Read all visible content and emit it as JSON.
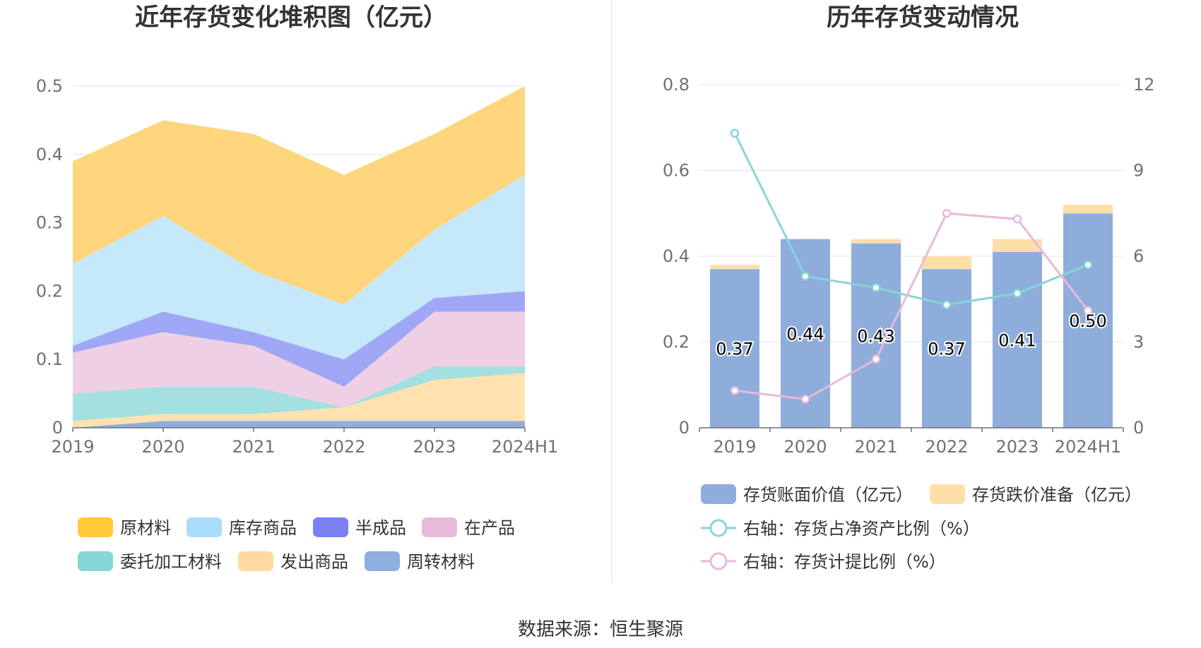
{
  "source": "数据来源：恒生聚源",
  "chart_data": [
    {
      "type": "area",
      "stacked": true,
      "title": "近年存货变化堆积图（亿元）",
      "categories": [
        "2019",
        "2020",
        "2021",
        "2022",
        "2023",
        "2024H1"
      ],
      "y_ticks": [
        "0",
        "0.1",
        "0.2",
        "0.3",
        "0.4",
        "0.5"
      ],
      "ylim": [
        0,
        0.5
      ],
      "grid": true,
      "legend_position": "bottom",
      "series": [
        {
          "name": "周转材料",
          "color": "#8eaee0",
          "values": [
            0.0,
            0.01,
            0.01,
            0.01,
            0.01,
            0.01
          ]
        },
        {
          "name": "发出商品",
          "color": "#ffe2b0",
          "values": [
            0.01,
            0.01,
            0.01,
            0.02,
            0.06,
            0.07
          ]
        },
        {
          "name": "委托加工材料",
          "color": "#a3e0df",
          "values": [
            0.04,
            0.04,
            0.04,
            0.0,
            0.02,
            0.01
          ]
        },
        {
          "name": "在产品",
          "color": "#efcfe5",
          "values": [
            0.06,
            0.08,
            0.06,
            0.03,
            0.08,
            0.08
          ]
        },
        {
          "name": "半成品",
          "color": "#a0a7f6",
          "values": [
            0.01,
            0.03,
            0.02,
            0.04,
            0.02,
            0.03
          ]
        },
        {
          "name": "库存商品",
          "color": "#c5e9fb",
          "values": [
            0.12,
            0.14,
            0.09,
            0.08,
            0.1,
            0.17
          ]
        },
        {
          "name": "原材料",
          "color": "#ffd67e",
          "values": [
            0.15,
            0.14,
            0.2,
            0.19,
            0.14,
            0.13
          ]
        }
      ],
      "legend": [
        {
          "name": "原材料",
          "color": "#ffc93a"
        },
        {
          "name": "库存商品",
          "color": "#a9def9"
        },
        {
          "name": "半成品",
          "color": "#7b80f2"
        },
        {
          "name": "在产品",
          "color": "#e9b9da"
        },
        {
          "name": "委托加工材料",
          "color": "#86d6d6"
        },
        {
          "name": "发出商品",
          "color": "#ffd9a0"
        },
        {
          "name": "周转材料",
          "color": "#8eaee0"
        }
      ]
    },
    {
      "type": "bar+line",
      "title": "历年存货变动情况",
      "categories": [
        "2019",
        "2020",
        "2021",
        "2022",
        "2023",
        "2024H1"
      ],
      "y_left_ticks": [
        "0",
        "0.2",
        "0.4",
        "0.6",
        "0.8"
      ],
      "y_left_lim": [
        0,
        0.8
      ],
      "y_right_ticks": [
        "0",
        "3",
        "6",
        "9",
        "12"
      ],
      "y_right_lim": [
        0,
        12
      ],
      "grid": true,
      "legend_position": "bottom",
      "bars": [
        {
          "name": "存货账面价值（亿元）",
          "color": "#8eaddb",
          "values": [
            0.37,
            0.44,
            0.43,
            0.37,
            0.41,
            0.5
          ],
          "labels": [
            "0.37",
            "0.44",
            "0.43",
            "0.37",
            "0.41",
            "0.50"
          ]
        },
        {
          "name": "存货跌价准备（亿元）",
          "color": "#ffdfa8",
          "values": [
            0.01,
            0.0,
            0.01,
            0.03,
            0.03,
            0.02
          ]
        }
      ],
      "lines": [
        {
          "name": "右轴：存货占净资产比例（%）",
          "color": "#86d6d6",
          "axis": "right",
          "values": [
            10.3,
            5.3,
            4.9,
            4.3,
            4.7,
            5.7
          ]
        },
        {
          "name": "右轴：存货计提比例（%）",
          "color": "#e9b9da",
          "axis": "right",
          "values": [
            1.3,
            1.0,
            2.4,
            7.5,
            7.3,
            4.1
          ]
        }
      ]
    }
  ]
}
